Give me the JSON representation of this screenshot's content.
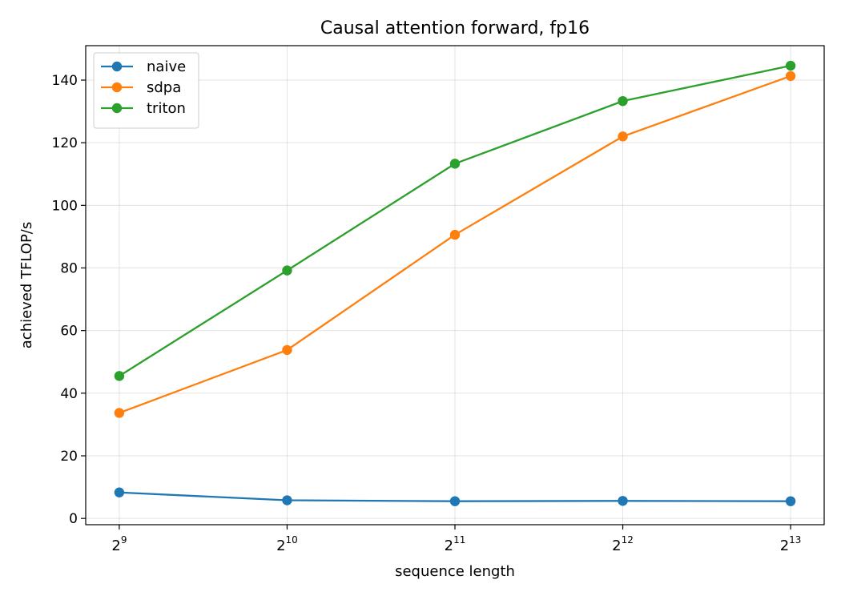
{
  "chart_data": {
    "type": "line",
    "title": "Causal attention forward, fp16",
    "xlabel": "sequence length",
    "ylabel": "achieved TFLOP/s",
    "x_scale": "log2",
    "x": [
      512,
      1024,
      2048,
      4096,
      8192
    ],
    "x_tick_labels": [
      {
        "base": "2",
        "exp": "9"
      },
      {
        "base": "2",
        "exp": "10"
      },
      {
        "base": "2",
        "exp": "11"
      },
      {
        "base": "2",
        "exp": "12"
      },
      {
        "base": "2",
        "exp": "13"
      }
    ],
    "y_ticks": [
      0,
      20,
      40,
      60,
      80,
      100,
      120,
      140
    ],
    "ylim": [
      -2,
      151
    ],
    "grid": true,
    "legend_position": "top-left",
    "series": [
      {
        "name": "naive",
        "color": "#1f77b4",
        "marker": "circle",
        "values": [
          8.3,
          5.8,
          5.5,
          5.6,
          5.5
        ]
      },
      {
        "name": "sdpa",
        "color": "#ff7f0e",
        "marker": "circle",
        "values": [
          33.7,
          53.8,
          90.6,
          122.0,
          141.3
        ]
      },
      {
        "name": "triton",
        "color": "#2ca02c",
        "marker": "circle",
        "values": [
          45.5,
          79.2,
          113.3,
          133.3,
          144.6
        ]
      }
    ]
  }
}
